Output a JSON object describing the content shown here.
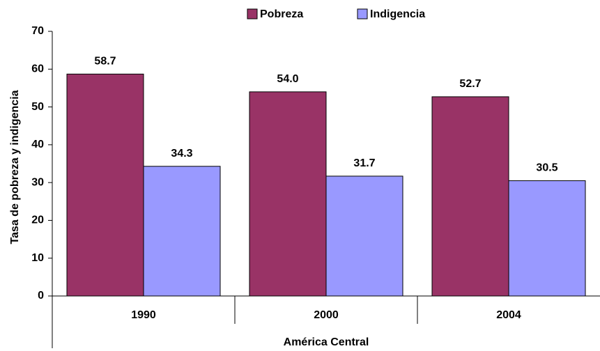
{
  "chart_data": {
    "type": "bar",
    "categories": [
      "1990",
      "2000",
      "2004"
    ],
    "series": [
      {
        "name": "Pobreza",
        "color": "#993366",
        "values": [
          58.7,
          54.0,
          52.7
        ],
        "value_labels": [
          "58.7",
          "54.0",
          "52.7"
        ]
      },
      {
        "name": "Indigencia",
        "color": "#9999ff",
        "values": [
          34.3,
          31.7,
          30.5
        ],
        "value_labels": [
          "34.3",
          "31.7",
          "30.5"
        ]
      }
    ],
    "ylabel": "Tasa de pobreza y indigencia",
    "xlabel": "América Central",
    "ylim": [
      0,
      70
    ],
    "yticks": [
      0,
      10,
      20,
      30,
      40,
      50,
      60,
      70
    ],
    "legend": "top"
  }
}
